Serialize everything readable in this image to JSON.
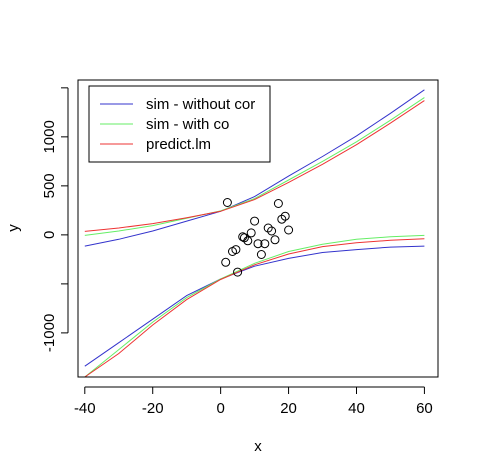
{
  "chart_data": {
    "type": "line",
    "title": "",
    "xlabel": "x",
    "ylabel": "y",
    "xlim": [
      -42,
      64
    ],
    "ylim": [
      -1450,
      1580
    ],
    "x_ticks": [
      -40,
      -20,
      0,
      20,
      40,
      60
    ],
    "x_tick_labels": [
      "-40",
      "-20",
      "0",
      "20",
      "40",
      "60"
    ],
    "y_ticks": [
      -1000,
      0,
      500,
      1000
    ],
    "y_tick_labels": [
      "-1000",
      "0",
      "500",
      "1000"
    ],
    "y_minor_ticks": [
      -500,
      1500
    ],
    "legend_position": "top-left",
    "legend": [
      {
        "label": "sim - without cor",
        "color": "#3333cc"
      },
      {
        "label": "sim - with co",
        "color": "#66ee66"
      },
      {
        "label": "predict.lm",
        "color": "#ee3333"
      }
    ],
    "points": {
      "name": "",
      "marker": "open-circle",
      "x": [
        1.5,
        2,
        3.5,
        4.5,
        5,
        6.5,
        7,
        8,
        9,
        10,
        11,
        12,
        13,
        14,
        15,
        16,
        17,
        18,
        19,
        20
      ],
      "y": [
        -280,
        330,
        -170,
        -150,
        -380,
        -20,
        -30,
        -60,
        20,
        140,
        -90,
        -200,
        -90,
        70,
        40,
        -50,
        320,
        160,
        190,
        50
      ]
    },
    "series": [
      {
        "color": "#3333cc",
        "band": "upper",
        "x": [
          -40,
          -30,
          -20,
          -10,
          0,
          10,
          20,
          30,
          40,
          50,
          60
        ],
        "y": [
          -115,
          -45,
          40,
          140,
          240,
          390,
          600,
          800,
          1010,
          1240,
          1480
        ]
      },
      {
        "color": "#3333cc",
        "band": "lower",
        "x": [
          -40,
          -30,
          -20,
          -10,
          0,
          10,
          20,
          30,
          40,
          50,
          60
        ],
        "y": [
          -1340,
          -1100,
          -860,
          -620,
          -450,
          -320,
          -240,
          -180,
          -150,
          -125,
          -115
        ]
      },
      {
        "color": "#66ee66",
        "band": "upper",
        "x": [
          -40,
          -30,
          -20,
          -10,
          0,
          10,
          20,
          30,
          40,
          50,
          60
        ],
        "y": [
          -5,
          40,
          95,
          170,
          245,
          370,
          560,
          750,
          950,
          1170,
          1400
        ]
      },
      {
        "color": "#66ee66",
        "band": "lower",
        "x": [
          -40,
          -30,
          -20,
          -10,
          0,
          10,
          20,
          30,
          40,
          50,
          60
        ],
        "y": [
          -1450,
          -1170,
          -890,
          -640,
          -450,
          -290,
          -170,
          -95,
          -45,
          -20,
          -5
        ]
      },
      {
        "color": "#ee3333",
        "band": "upper",
        "x": [
          -40,
          -30,
          -20,
          -10,
          0,
          10,
          20,
          30,
          40,
          50,
          60
        ],
        "y": [
          35,
          70,
          115,
          175,
          240,
          360,
          535,
          720,
          920,
          1140,
          1370
        ]
      },
      {
        "color": "#ee3333",
        "band": "lower",
        "x": [
          -40,
          -30,
          -20,
          -10,
          0,
          10,
          20,
          30,
          40,
          50,
          60
        ],
        "y": [
          -1500,
          -1210,
          -920,
          -660,
          -455,
          -305,
          -195,
          -120,
          -80,
          -55,
          -40
        ]
      }
    ]
  }
}
